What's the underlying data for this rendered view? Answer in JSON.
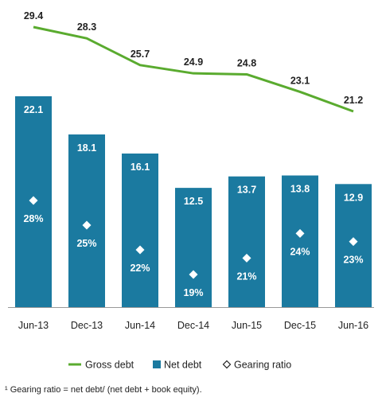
{
  "chart_data": {
    "type": "bar",
    "categories": [
      "Jun-13",
      "Dec-13",
      "Jun-14",
      "Dec-14",
      "Jun-15",
      "Dec-15",
      "Jun-16"
    ],
    "series": [
      {
        "name": "Gross debt",
        "type": "line",
        "values": [
          29.4,
          28.3,
          25.7,
          24.9,
          24.8,
          23.1,
          21.2
        ],
        "color": "#5aab2f"
      },
      {
        "name": "Net debt",
        "type": "bar",
        "values": [
          22.1,
          18.1,
          16.1,
          12.5,
          13.7,
          13.8,
          12.9
        ],
        "color": "#1b7aa0"
      },
      {
        "name": "Gearing ratio",
        "type": "scatter",
        "marker": "diamond",
        "values": [
          28,
          25,
          22,
          19,
          21,
          24,
          23
        ],
        "labels": [
          "28%",
          "25%",
          "22%",
          "19%",
          "21%",
          "24%",
          "23%"
        ]
      }
    ],
    "grid": false,
    "legend_position": "bottom"
  },
  "footnote": "¹ Gearing ratio = net debt/ (net debt + book equity)."
}
